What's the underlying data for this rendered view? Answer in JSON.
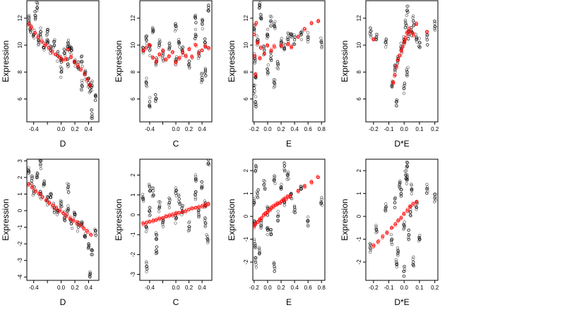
{
  "colors": {
    "observed": "#000000",
    "fitted": "#ff0000"
  },
  "chart_data": [
    {
      "type": "scatter",
      "row": 0,
      "col": 0,
      "xlabel": "D",
      "ylabel": "Expression",
      "xlim": [
        -0.5,
        0.55
      ],
      "ylim": [
        4.3,
        13.3
      ],
      "xticks": [
        -0.4,
        -0.2,
        0.0,
        0.2,
        0.4
      ],
      "xticklabels": [
        "-0.4",
        "",
        "0.0",
        "0.2",
        "0.4"
      ],
      "yticks": [
        6,
        8,
        10,
        12
      ],
      "yticklabels": [
        "6",
        "8",
        "10",
        "12"
      ],
      "series": [
        {
          "role": "observed",
          "x": [
            -0.47,
            -0.45,
            -0.4,
            -0.38,
            -0.33,
            -0.3,
            -0.25,
            -0.2,
            -0.15,
            -0.1,
            -0.05,
            0.0,
            0.05,
            0.1,
            0.1,
            0.15,
            0.2,
            0.25,
            0.3,
            0.35,
            0.4,
            0.42,
            0.45,
            0.5,
            -0.35,
            -0.2,
            0.0,
            0.12,
            0.3,
            0.45
          ],
          "y": [
            11.8,
            11.2,
            10.8,
            12.2,
            10.4,
            11.0,
            9.8,
            10.2,
            9.6,
            10.0,
            9.2,
            9.0,
            9.4,
            10.2,
            8.6,
            9.6,
            8.8,
            8.4,
            8.8,
            7.8,
            7.2,
            6.8,
            7.0,
            6.2,
            12.8,
            11.0,
            8.0,
            9.8,
            7.0,
            4.9
          ]
        },
        {
          "role": "fitted",
          "x": [
            -0.47,
            -0.43,
            -0.38,
            -0.33,
            -0.28,
            -0.23,
            -0.18,
            -0.13,
            -0.08,
            -0.03,
            0.02,
            0.07,
            0.1,
            0.14,
            0.19,
            0.24,
            0.29,
            0.34,
            0.38,
            0.42
          ],
          "y": [
            11.6,
            11.3,
            10.9,
            10.6,
            10.3,
            10.0,
            9.8,
            9.5,
            9.3,
            9.1,
            8.9,
            9.0,
            9.7,
            9.1,
            8.8,
            8.5,
            8.2,
            7.9,
            7.4,
            7.0
          ]
        }
      ]
    },
    {
      "type": "scatter",
      "row": 0,
      "col": 1,
      "xlabel": "C",
      "ylabel": "Expression",
      "xlim": [
        -0.55,
        0.55
      ],
      "ylim": [
        4.3,
        13.3
      ],
      "xticks": [
        -0.4,
        -0.2,
        0.0,
        0.2,
        0.4
      ],
      "xticklabels": [
        "-0.4",
        "",
        "0.0",
        "0.2",
        "0.4"
      ],
      "yticks": [
        6,
        8,
        10,
        12
      ],
      "yticklabels": [
        "6",
        "8",
        "10",
        "12"
      ],
      "series": [
        {
          "role": "observed",
          "x": [
            -0.5,
            -0.45,
            -0.4,
            -0.35,
            -0.3,
            -0.25,
            -0.2,
            -0.1,
            0.0,
            0.05,
            0.1,
            0.2,
            0.3,
            0.35,
            0.4,
            0.45,
            0.5,
            -0.45,
            -0.3,
            0.3,
            0.45,
            -0.4,
            0.0,
            0.4
          ],
          "y": [
            9.8,
            10.4,
            9.6,
            11.2,
            8.8,
            10.0,
            9.2,
            9.8,
            8.8,
            10.2,
            9.6,
            8.6,
            10.8,
            9.4,
            11.6,
            10.2,
            12.8,
            7.2,
            6.0,
            12.0,
            8.0,
            5.8,
            11.4,
            7.6
          ],
          "__note": ""
        },
        {
          "role": "fitted",
          "x": [
            -0.5,
            -0.45,
            -0.4,
            -0.35,
            -0.3,
            -0.25,
            -0.2,
            -0.15,
            -0.1,
            -0.05,
            0.0,
            0.05,
            0.1,
            0.15,
            0.2,
            0.25,
            0.3,
            0.35,
            0.4,
            0.45,
            0.5
          ],
          "y": [
            9.6,
            9.8,
            10.0,
            9.1,
            8.8,
            9.3,
            9.6,
            8.9,
            9.2,
            9.5,
            8.7,
            9.0,
            9.5,
            9.2,
            9.7,
            9.1,
            10.0,
            9.4,
            9.6,
            9.9,
            9.8
          ]
        }
      ]
    },
    {
      "type": "scatter",
      "row": 0,
      "col": 2,
      "xlabel": "E",
      "ylabel": "Expression",
      "xlim": [
        -0.22,
        0.85
      ],
      "ylim": [
        4.3,
        13.3
      ],
      "xticks": [
        -0.2,
        0.0,
        0.2,
        0.4,
        0.6,
        0.8
      ],
      "xticklabels": [
        "-0.2",
        "0.0",
        "0.2",
        "0.4",
        "0.6",
        "0.8"
      ],
      "yticks": [
        6,
        8,
        10,
        12
      ],
      "yticklabels": [
        "6",
        "8",
        "10",
        "12"
      ],
      "series": [
        {
          "role": "observed",
          "x": [
            -0.2,
            -0.19,
            -0.18,
            -0.15,
            -0.1,
            -0.05,
            0.0,
            0.05,
            0.1,
            0.15,
            0.2,
            0.25,
            0.3,
            0.35,
            0.4,
            0.5,
            0.6,
            0.8,
            -0.18,
            -0.12,
            0.0,
            0.1,
            -0.2,
            0.05
          ],
          "y": [
            11.2,
            9.0,
            7.6,
            10.4,
            12.0,
            9.6,
            10.8,
            9.2,
            11.4,
            8.6,
            10.2,
            9.8,
            10.6,
            10.8,
            10.4,
            10.8,
            10.6,
            10.2,
            5.8,
            12.8,
            8.2,
            7.2,
            6.8,
            11.8
          ]
        },
        {
          "role": "fitted",
          "x": [
            -0.2,
            -0.19,
            -0.18,
            -0.17,
            -0.15,
            -0.12,
            -0.1,
            -0.05,
            0.0,
            0.05,
            0.1,
            0.2,
            0.3,
            0.35,
            0.45,
            0.55,
            0.65,
            0.75
          ],
          "y": [
            10.8,
            9.2,
            7.8,
            11.6,
            10.2,
            9.0,
            9.8,
            9.4,
            10.0,
            9.6,
            9.9,
            10.0,
            10.1,
            9.9,
            10.6,
            11.2,
            11.6,
            11.8
          ]
        }
      ]
    },
    {
      "type": "scatter",
      "row": 0,
      "col": 3,
      "xlabel": "D*E",
      "ylabel": "Expression",
      "xlim": [
        -0.25,
        0.22
      ],
      "ylim": [
        4.3,
        13.3
      ],
      "xticks": [
        -0.2,
        -0.1,
        0.0,
        0.1,
        0.2
      ],
      "xticklabels": [
        "-0.2",
        "-0.1",
        "0.0",
        "0.1",
        "0.2"
      ],
      "yticks": [
        6,
        8,
        10,
        12
      ],
      "yticklabels": [
        "6",
        "8",
        "10",
        "12"
      ],
      "series": [
        {
          "role": "observed",
          "x": [
            -0.22,
            -0.18,
            -0.12,
            -0.08,
            -0.06,
            -0.04,
            -0.02,
            0.0,
            0.01,
            0.02,
            0.03,
            0.05,
            0.08,
            0.1,
            0.15,
            0.2,
            -0.05,
            0.0,
            0.02,
            0.06
          ],
          "y": [
            11.0,
            10.6,
            10.2,
            7.0,
            8.2,
            9.0,
            9.8,
            10.4,
            11.6,
            12.6,
            10.8,
            11.0,
            10.6,
            10.2,
            10.4,
            11.4,
            5.8,
            6.8,
            8.0,
            11.8
          ]
        },
        {
          "role": "fitted",
          "x": [
            -0.07,
            -0.06,
            -0.05,
            -0.04,
            -0.03,
            -0.02,
            -0.01,
            0.0,
            0.01,
            0.02,
            0.03,
            0.04,
            0.06,
            0.08,
            -0.2,
            0.15
          ],
          "y": [
            7.2,
            7.8,
            8.4,
            8.9,
            9.2,
            9.6,
            9.9,
            10.2,
            10.5,
            10.9,
            11.2,
            11.0,
            10.8,
            11.6,
            10.4,
            11.0
          ]
        }
      ]
    },
    {
      "type": "scatter",
      "row": 1,
      "col": 0,
      "xlabel": "D",
      "ylabel": "Expression",
      "xlim": [
        -0.5,
        0.55
      ],
      "ylim": [
        -4.2,
        3.1
      ],
      "xticks": [
        -0.4,
        -0.2,
        0.0,
        0.2,
        0.4
      ],
      "xticklabels": [
        "-0.4",
        "",
        "0.0",
        "0.2",
        "0.4"
      ],
      "yticks": [
        -4,
        -3,
        -2,
        -1,
        0,
        1,
        2,
        3
      ],
      "yticklabels": [
        "-4",
        "-3",
        "-2",
        "-1",
        "0",
        "1",
        "2",
        "3"
      ],
      "series": [
        {
          "role": "observed",
          "x": [
            -0.47,
            -0.43,
            -0.4,
            -0.35,
            -0.3,
            -0.25,
            -0.2,
            -0.15,
            -0.1,
            -0.05,
            0.0,
            0.05,
            0.1,
            0.15,
            0.2,
            0.25,
            0.3,
            0.35,
            0.4,
            0.45,
            0.5,
            -0.3,
            0.1,
            0.42
          ],
          "y": [
            2.4,
            1.8,
            1.2,
            2.0,
            1.0,
            1.6,
            0.6,
            0.8,
            0.2,
            0.0,
            0.4,
            -0.4,
            0.0,
            -0.8,
            -0.2,
            -1.0,
            -0.8,
            -1.6,
            -2.0,
            -2.4,
            -1.2,
            2.8,
            1.4,
            -4.0
          ]
        },
        {
          "role": "fitted",
          "x": [
            -0.47,
            -0.42,
            -0.37,
            -0.32,
            -0.27,
            -0.22,
            -0.17,
            -0.12,
            -0.07,
            -0.02,
            0.03,
            0.08,
            0.13,
            0.18,
            0.23,
            0.28,
            0.33,
            0.38,
            0.43
          ],
          "y": [
            1.6,
            1.4,
            1.2,
            1.0,
            0.8,
            0.6,
            0.45,
            0.3,
            0.15,
            0.0,
            -0.15,
            -0.3,
            -0.45,
            -0.6,
            -0.75,
            -0.9,
            -1.05,
            -1.25,
            -1.45
          ]
        }
      ]
    },
    {
      "type": "scatter",
      "row": 1,
      "col": 1,
      "xlabel": "C",
      "ylabel": "Expression",
      "xlim": [
        -0.55,
        0.55
      ],
      "ylim": [
        -3.3,
        2.8
      ],
      "xticks": [
        -0.4,
        -0.2,
        0.0,
        0.2,
        0.4
      ],
      "xticklabels": [
        "-0.4",
        "",
        "0.0",
        "0.2",
        "0.4"
      ],
      "yticks": [
        -3,
        -2,
        -1,
        0,
        1,
        2
      ],
      "yticklabels": [
        "-3",
        "-2",
        "-1",
        "0",
        "1",
        "2"
      ],
      "series": [
        {
          "role": "observed",
          "x": [
            -0.5,
            -0.45,
            -0.4,
            -0.35,
            -0.3,
            -0.25,
            -0.2,
            -0.1,
            0.0,
            0.05,
            0.1,
            0.2,
            0.3,
            0.35,
            0.4,
            0.45,
            0.5,
            -0.45,
            -0.3,
            0.3,
            0.48,
            -0.4,
            0.0,
            0.45
          ],
          "y": [
            0.8,
            -0.6,
            0.2,
            1.2,
            -1.0,
            0.4,
            -0.4,
            0.6,
            -0.2,
            0.8,
            0.2,
            -0.6,
            1.0,
            0.0,
            1.4,
            -0.4,
            2.6,
            -2.6,
            -1.8,
            1.8,
            -1.2,
            1.4,
            1.2,
            0.6
          ]
        },
        {
          "role": "fitted",
          "x": [
            -0.5,
            -0.45,
            -0.4,
            -0.35,
            -0.3,
            -0.25,
            -0.2,
            -0.15,
            -0.1,
            -0.05,
            0.0,
            0.05,
            0.1,
            0.15,
            0.2,
            0.25,
            0.3,
            0.35,
            0.4,
            0.45,
            0.5
          ],
          "y": [
            -0.45,
            -0.4,
            -0.35,
            -0.3,
            -0.25,
            -0.2,
            -0.15,
            -0.1,
            -0.05,
            0.0,
            0.05,
            0.1,
            0.15,
            0.2,
            0.25,
            0.3,
            0.35,
            0.4,
            0.45,
            0.5,
            0.55
          ]
        }
      ]
    },
    {
      "type": "scatter",
      "row": 1,
      "col": 2,
      "xlabel": "E",
      "ylabel": "Expression",
      "xlim": [
        -0.22,
        0.85
      ],
      "ylim": [
        -2.8,
        2.5
      ],
      "xticks": [
        -0.2,
        0.0,
        0.2,
        0.4,
        0.6,
        0.8
      ],
      "xticklabels": [
        "-0.2",
        "0.0",
        "0.2",
        "0.4",
        "0.6",
        "0.8"
      ],
      "yticks": [
        -2,
        -1,
        0,
        1,
        2
      ],
      "yticklabels": [
        "-2",
        "-1",
        "0",
        "1",
        "2"
      ],
      "series": [
        {
          "role": "observed",
          "x": [
            -0.2,
            -0.19,
            -0.18,
            -0.15,
            -0.1,
            -0.05,
            0.0,
            0.05,
            0.1,
            0.15,
            0.2,
            0.25,
            0.3,
            0.35,
            0.4,
            0.5,
            0.6,
            0.8,
            -0.18,
            -0.12,
            0.0,
            0.1,
            -0.2,
            0.25
          ],
          "y": [
            0.6,
            -1.2,
            -2.0,
            1.0,
            -0.4,
            1.4,
            0.2,
            -0.8,
            1.6,
            0.0,
            1.2,
            0.6,
            1.8,
            1.0,
            0.4,
            1.2,
            -0.2,
            0.6,
            2.0,
            -1.6,
            -0.6,
            -2.2,
            -0.2,
            2.2
          ]
        },
        {
          "role": "fitted",
          "x": [
            -0.2,
            -0.18,
            -0.15,
            -0.12,
            -0.09,
            -0.06,
            -0.03,
            0.0,
            0.03,
            0.06,
            0.09,
            0.12,
            0.15,
            0.18,
            0.21,
            0.24,
            0.27,
            0.3,
            0.34,
            0.45,
            0.55,
            0.65,
            0.75
          ],
          "y": [
            -0.45,
            -0.35,
            -0.25,
            -0.15,
            -0.05,
            0.05,
            0.12,
            0.2,
            0.28,
            0.35,
            0.42,
            0.5,
            0.56,
            0.62,
            0.68,
            0.72,
            0.78,
            0.84,
            0.9,
            1.1,
            1.3,
            1.5,
            1.7
          ]
        }
      ]
    },
    {
      "type": "scatter",
      "row": 1,
      "col": 3,
      "xlabel": "D*E",
      "ylabel": "Expression",
      "xlim": [
        -0.25,
        0.22
      ],
      "ylim": [
        -2.8,
        2.5
      ],
      "xticks": [
        -0.2,
        -0.1,
        0.0,
        0.1,
        0.2
      ],
      "xticklabels": [
        "-0.2",
        "-0.1",
        "0.0",
        "0.1",
        "0.2"
      ],
      "yticks": [
        -2,
        -1,
        0,
        1,
        2
      ],
      "yticklabels": [
        "-2",
        "-1",
        "0",
        "1",
        "2"
      ],
      "series": [
        {
          "role": "observed",
          "x": [
            -0.22,
            -0.18,
            -0.12,
            -0.08,
            -0.06,
            -0.04,
            -0.02,
            0.0,
            0.01,
            0.02,
            0.03,
            0.05,
            0.08,
            0.1,
            0.15,
            0.2,
            -0.05,
            0.0,
            0.02,
            0.06,
            -0.03,
            0.04
          ],
          "y": [
            -1.4,
            -0.6,
            0.4,
            -1.0,
            0.6,
            -1.6,
            1.0,
            -0.4,
            1.8,
            2.2,
            -0.8,
            1.2,
            0.4,
            -1.0,
            1.2,
            0.8,
            -2.0,
            -2.4,
            1.6,
            -2.0,
            1.4,
            0.2
          ]
        },
        {
          "role": "fitted",
          "x": [
            -0.2,
            -0.17,
            -0.14,
            -0.11,
            -0.08,
            -0.06,
            -0.04,
            -0.02,
            0.0,
            0.02,
            0.04,
            0.06,
            0.08
          ],
          "y": [
            -1.3,
            -1.1,
            -0.9,
            -0.7,
            -0.5,
            -0.35,
            -0.2,
            -0.05,
            0.1,
            0.25,
            0.4,
            0.55,
            0.65
          ]
        }
      ]
    }
  ]
}
